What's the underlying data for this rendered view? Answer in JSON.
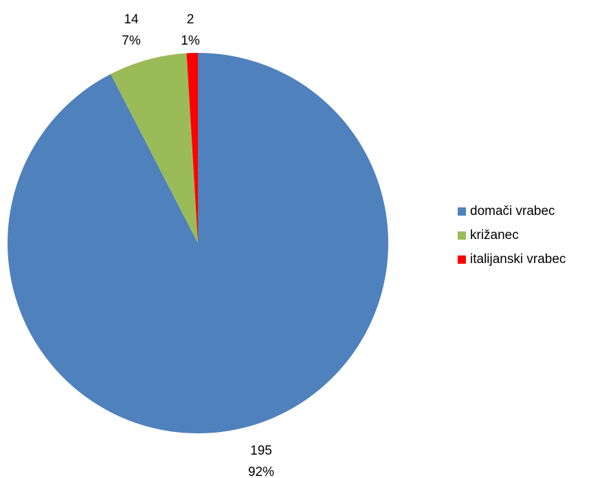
{
  "chart_data": {
    "type": "pie",
    "slices": [
      {
        "label": "domači vrabec",
        "value": 195,
        "percent": "92%",
        "color": "#4F81BD"
      },
      {
        "label": "križanec",
        "value": 14,
        "percent": "7%",
        "color": "#9BBB59"
      },
      {
        "label": "italijanski vrabec",
        "value": 2,
        "percent": "1%",
        "color": "#FF0000"
      }
    ],
    "legend_position": "right"
  }
}
